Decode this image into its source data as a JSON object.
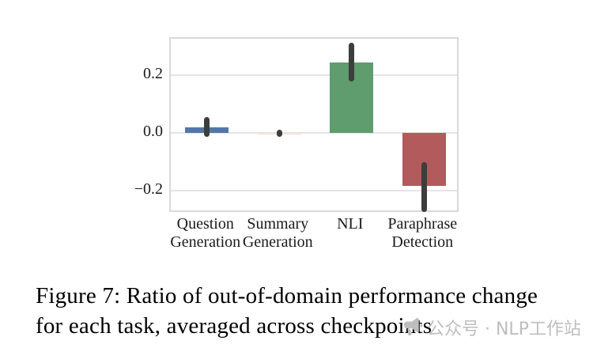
{
  "chart_data": {
    "type": "bar",
    "title": "",
    "xlabel": "",
    "ylabel": "",
    "categories": [
      "Question\nGeneration",
      "Summary\nGeneration",
      "NLI",
      "Paraphrase\nDetection"
    ],
    "values": [
      0.02,
      -0.003,
      0.245,
      -0.185
    ],
    "error_bars": [
      [
        -0.015,
        0.055
      ],
      [
        -0.013,
        0.012
      ],
      [
        0.178,
        0.315
      ],
      [
        -0.275,
        -0.103
      ]
    ],
    "bar_colors": [
      "#5277a6",
      "#f3e3d7",
      "#5f9c6e",
      "#b25a5c"
    ],
    "errorbar_color": "#3d3d3d",
    "yticks": [
      0.2,
      0.0,
      -0.2
    ],
    "ytick_labels": [
      "0.2",
      "0.0",
      "−0.2"
    ],
    "ylim": [
      -0.281,
      0.328
    ],
    "grid": "horizontal",
    "gridline_color": "#e4e4e4",
    "legend": "none"
  },
  "caption": {
    "lines": [
      "Figure 7: Ratio of out-of-domain performance change",
      "for each task, averaged across checkpoints"
    ]
  },
  "watermark": {
    "icon": "megaphone-icon",
    "text": "公众号 · NLP工作站",
    "color": "#bfbdbd"
  }
}
